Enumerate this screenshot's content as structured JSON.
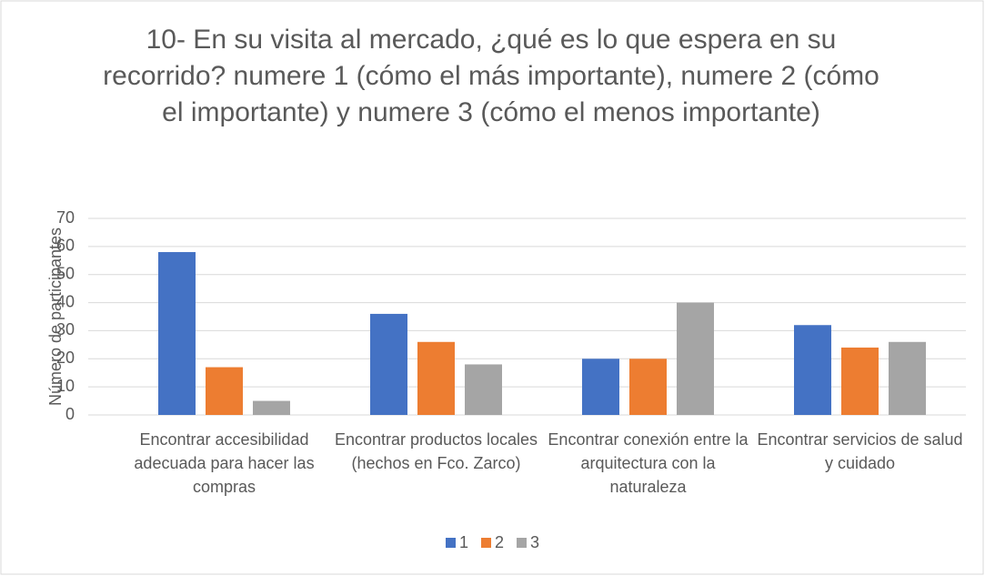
{
  "chart_data": {
    "type": "bar",
    "title": "10- En su visita al mercado, ¿qué es lo que espera en su recorrido? numere 1 (cómo el más importante), numere 2 (cómo el importante) y numere 3 (cómo el menos importante)",
    "y_label": "Número de participantes",
    "categories": [
      "Encontrar accesibilidad adecuada para hacer las compras",
      "Encontrar productos locales (hechos en Fco. Zarco)",
      "Encontrar conexión entre la arquitectura con la naturaleza",
      "Encontrar servicios de salud y cuidado"
    ],
    "series": [
      {
        "name": "1",
        "color": "#4472c4",
        "values": [
          58,
          36,
          20,
          32
        ]
      },
      {
        "name": "2",
        "color": "#ed7d31",
        "values": [
          17,
          26,
          20,
          24
        ]
      },
      {
        "name": "3",
        "color": "#a5a5a5",
        "values": [
          5,
          18,
          40,
          26
        ]
      }
    ],
    "ylim": [
      0,
      70
    ],
    "yticks": [
      0,
      10,
      20,
      30,
      40,
      50,
      60,
      70
    ],
    "grid": true,
    "legend": "bottom"
  }
}
